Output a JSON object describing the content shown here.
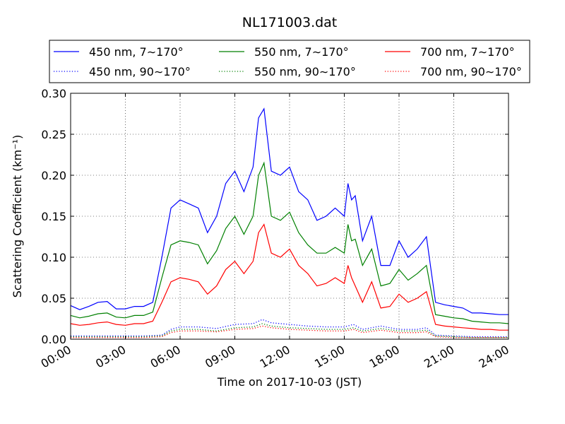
{
  "chart_data": {
    "type": "line",
    "title": "NL171003.dat",
    "xlabel": "Time on 2017-10-03 (JST)",
    "ylabel": "Scattering Coefficient (km⁻¹)",
    "x_unit": "hours",
    "xlim": [
      0,
      24
    ],
    "ylim": [
      0,
      0.3
    ],
    "xticks": [
      0,
      3,
      6,
      9,
      12,
      15,
      18,
      21,
      24
    ],
    "xtick_labels": [
      "00:00",
      "03:00",
      "06:00",
      "09:00",
      "12:00",
      "15:00",
      "18:00",
      "21:00",
      "24:00"
    ],
    "yticks": [
      0.0,
      0.05,
      0.1,
      0.15,
      0.2,
      0.25,
      0.3
    ],
    "ytick_labels": [
      "0.00",
      "0.05",
      "0.10",
      "0.15",
      "0.20",
      "0.25",
      "0.30"
    ],
    "grid": true,
    "legend_position": "top, above plot",
    "series": [
      {
        "name": "450 nm, 7∼170°",
        "color": "#0000ff",
        "style": "solid",
        "x": [
          0,
          0.5,
          1,
          1.5,
          2,
          2.5,
          3,
          3.5,
          4,
          4.5,
          5,
          5.5,
          6,
          6.5,
          7,
          7.5,
          8,
          8.5,
          9,
          9.5,
          10,
          10.3,
          10.6,
          11,
          11.5,
          12,
          12.5,
          13,
          13.5,
          14,
          14.5,
          15,
          15.2,
          15.4,
          15.6,
          16,
          16.5,
          17,
          17.5,
          18,
          18.5,
          19,
          19.5,
          20,
          20.5,
          21,
          21.5,
          22,
          22.5,
          23,
          23.5,
          24
        ],
        "y": [
          0.041,
          0.036,
          0.04,
          0.045,
          0.046,
          0.037,
          0.037,
          0.04,
          0.04,
          0.045,
          0.1,
          0.16,
          0.17,
          0.165,
          0.16,
          0.13,
          0.15,
          0.19,
          0.205,
          0.18,
          0.21,
          0.27,
          0.281,
          0.205,
          0.2,
          0.21,
          0.18,
          0.17,
          0.145,
          0.15,
          0.16,
          0.15,
          0.19,
          0.17,
          0.175,
          0.12,
          0.15,
          0.09,
          0.09,
          0.12,
          0.1,
          0.11,
          0.125,
          0.045,
          0.042,
          0.04,
          0.038,
          0.032,
          0.032,
          0.031,
          0.03,
          0.03
        ]
      },
      {
        "name": "550 nm, 7∼170°",
        "color": "#008000",
        "style": "solid",
        "x": [
          0,
          0.5,
          1,
          1.5,
          2,
          2.5,
          3,
          3.5,
          4,
          4.5,
          5,
          5.5,
          6,
          6.5,
          7,
          7.5,
          8,
          8.5,
          9,
          9.5,
          10,
          10.3,
          10.6,
          11,
          11.5,
          12,
          12.5,
          13,
          13.5,
          14,
          14.5,
          15,
          15.2,
          15.4,
          15.6,
          16,
          16.5,
          17,
          17.5,
          18,
          18.5,
          19,
          19.5,
          20,
          20.5,
          21,
          21.5,
          22,
          22.5,
          23,
          23.5,
          24
        ],
        "y": [
          0.029,
          0.026,
          0.028,
          0.031,
          0.032,
          0.027,
          0.026,
          0.029,
          0.029,
          0.033,
          0.075,
          0.115,
          0.12,
          0.118,
          0.115,
          0.092,
          0.108,
          0.135,
          0.15,
          0.128,
          0.15,
          0.2,
          0.215,
          0.15,
          0.145,
          0.155,
          0.13,
          0.115,
          0.105,
          0.105,
          0.112,
          0.105,
          0.14,
          0.12,
          0.122,
          0.09,
          0.11,
          0.065,
          0.068,
          0.085,
          0.072,
          0.08,
          0.09,
          0.03,
          0.028,
          0.026,
          0.025,
          0.022,
          0.021,
          0.02,
          0.02,
          0.019
        ]
      },
      {
        "name": "700 nm, 7∼170°",
        "color": "#ff0000",
        "style": "solid",
        "x": [
          0,
          0.5,
          1,
          1.5,
          2,
          2.5,
          3,
          3.5,
          4,
          4.5,
          5,
          5.5,
          6,
          6.5,
          7,
          7.5,
          8,
          8.5,
          9,
          9.5,
          10,
          10.3,
          10.6,
          11,
          11.5,
          12,
          12.5,
          13,
          13.5,
          14,
          14.5,
          15,
          15.2,
          15.4,
          15.6,
          16,
          16.5,
          17,
          17.5,
          18,
          18.5,
          19,
          19.5,
          20,
          20.5,
          21,
          21.5,
          22,
          22.5,
          23,
          23.5,
          24
        ],
        "y": [
          0.019,
          0.017,
          0.018,
          0.02,
          0.021,
          0.018,
          0.017,
          0.019,
          0.019,
          0.022,
          0.045,
          0.07,
          0.075,
          0.073,
          0.07,
          0.055,
          0.065,
          0.085,
          0.095,
          0.08,
          0.095,
          0.13,
          0.14,
          0.105,
          0.1,
          0.11,
          0.09,
          0.08,
          0.065,
          0.068,
          0.075,
          0.068,
          0.09,
          0.075,
          0.065,
          0.045,
          0.07,
          0.038,
          0.04,
          0.055,
          0.045,
          0.05,
          0.058,
          0.018,
          0.016,
          0.015,
          0.014,
          0.013,
          0.012,
          0.012,
          0.011,
          0.011
        ]
      },
      {
        "name": "450 nm, 90∼170°",
        "color": "#0000ff",
        "style": "dotted",
        "x": [
          0,
          1,
          2,
          3,
          4,
          5,
          5.5,
          6,
          7,
          8,
          9,
          10,
          10.5,
          11,
          12,
          13,
          14,
          15,
          15.5,
          16,
          17,
          18,
          19,
          19.5,
          20,
          21,
          22,
          23,
          24
        ],
        "y": [
          0.004,
          0.004,
          0.004,
          0.004,
          0.004,
          0.005,
          0.012,
          0.015,
          0.015,
          0.013,
          0.018,
          0.019,
          0.024,
          0.02,
          0.018,
          0.016,
          0.015,
          0.015,
          0.018,
          0.012,
          0.016,
          0.012,
          0.012,
          0.014,
          0.005,
          0.004,
          0.003,
          0.003,
          0.003
        ]
      },
      {
        "name": "550 nm, 90∼170°",
        "color": "#008000",
        "style": "dotted",
        "x": [
          0,
          1,
          2,
          3,
          4,
          5,
          5.5,
          6,
          7,
          8,
          9,
          10,
          10.5,
          11,
          12,
          13,
          14,
          15,
          15.5,
          16,
          17,
          18,
          19,
          19.5,
          20,
          21,
          22,
          23,
          24
        ],
        "y": [
          0.003,
          0.003,
          0.003,
          0.003,
          0.003,
          0.004,
          0.01,
          0.012,
          0.012,
          0.01,
          0.014,
          0.015,
          0.019,
          0.016,
          0.014,
          0.013,
          0.012,
          0.012,
          0.014,
          0.01,
          0.013,
          0.01,
          0.01,
          0.011,
          0.004,
          0.003,
          0.002,
          0.002,
          0.002
        ]
      },
      {
        "name": "700 nm, 90∼170°",
        "color": "#ff0000",
        "style": "dotted",
        "x": [
          0,
          1,
          2,
          3,
          4,
          5,
          5.5,
          6,
          7,
          8,
          9,
          10,
          10.5,
          11,
          12,
          13,
          14,
          15,
          15.5,
          16,
          17,
          18,
          19,
          19.5,
          20,
          21,
          22,
          23,
          24
        ],
        "y": [
          0.002,
          0.002,
          0.002,
          0.002,
          0.002,
          0.003,
          0.008,
          0.01,
          0.01,
          0.009,
          0.012,
          0.013,
          0.016,
          0.014,
          0.012,
          0.011,
          0.01,
          0.01,
          0.012,
          0.008,
          0.011,
          0.008,
          0.008,
          0.009,
          0.003,
          0.002,
          0.002,
          0.002,
          0.002
        ]
      }
    ]
  }
}
